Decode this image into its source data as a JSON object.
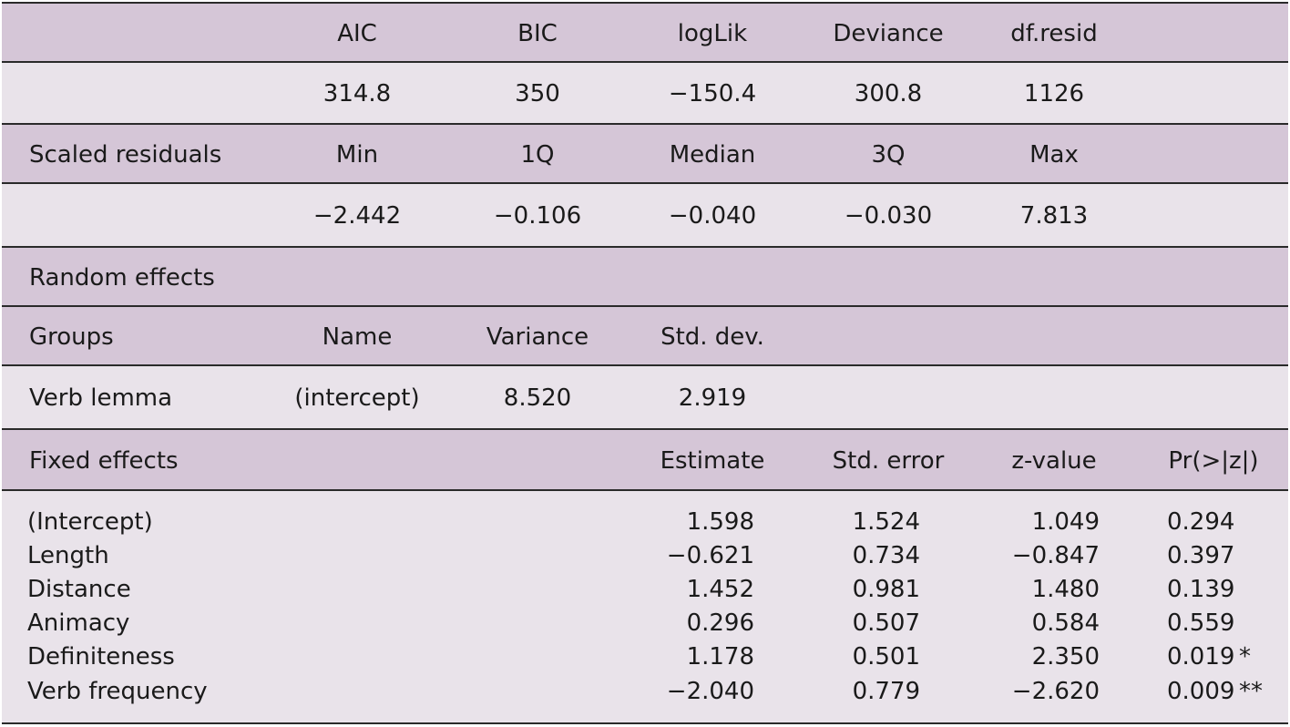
{
  "header_row": {
    "cols": [
      "AIC",
      "BIC",
      "logLik",
      "Deviance",
      "df.resid"
    ]
  },
  "fit_values": [
    "314.8",
    "350",
    "−150.4",
    "300.8",
    "1126"
  ],
  "residuals_header": {
    "label": "Scaled residuals",
    "cols": [
      "Min",
      "1Q",
      "Median",
      "3Q",
      "Max"
    ]
  },
  "residuals_values": [
    "−2.442",
    "−0.106",
    "−0.040",
    "−0.030",
    "7.813"
  ],
  "random_effects": {
    "section_label": "Random effects",
    "header": [
      "Groups",
      "Name",
      "Variance",
      "Std. dev."
    ],
    "row": [
      "Verb lemma",
      "(intercept)",
      "8.520",
      "2.919"
    ]
  },
  "fixed_effects": {
    "header": [
      "Fixed effects",
      "Estimate",
      "Std. error",
      "z-value",
      "Pr(>|z|)"
    ],
    "rows": [
      {
        "term": "(Intercept)",
        "estimate": "1.598",
        "se": "1.524",
        "z": "1.049",
        "p": "0.294",
        "sig": ""
      },
      {
        "term": "Length",
        "estimate": "−0.621",
        "se": "0.734",
        "z": "−0.847",
        "p": "0.397",
        "sig": ""
      },
      {
        "term": "Distance",
        "estimate": "1.452",
        "se": "0.981",
        "z": "1.480",
        "p": "0.139",
        "sig": ""
      },
      {
        "term": "Animacy",
        "estimate": "0.296",
        "se": "0.507",
        "z": "0.584",
        "p": "0.559",
        "sig": ""
      },
      {
        "term": "Definiteness",
        "estimate": "1.178",
        "se": "0.501",
        "z": "2.350",
        "p": "0.019",
        "sig": "*"
      },
      {
        "term": "Verb frequency",
        "estimate": "−2.040",
        "se": "0.779",
        "z": "−2.620",
        "p": "0.009",
        "sig": "**"
      }
    ]
  },
  "colors": {
    "header_band": "#d5c6d7",
    "value_band": "#e9e3ea",
    "rule": "#2a2a2a"
  }
}
